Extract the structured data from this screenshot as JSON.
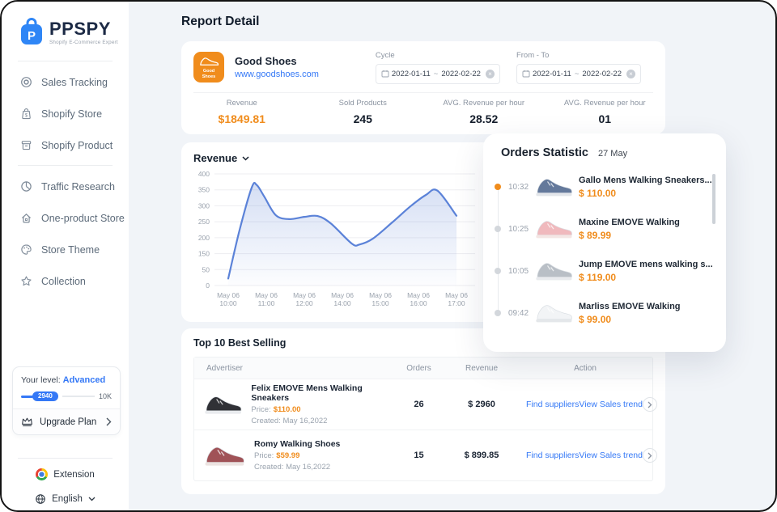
{
  "sidebar": {
    "brand": "PPSPY",
    "tagline": "Shopify E-Commerce Expert",
    "nav_primary": [
      {
        "label": "Sales Tracking"
      },
      {
        "label": "Shopify Store"
      },
      {
        "label": "Shopify Product"
      }
    ],
    "nav_secondary": [
      {
        "label": "Traffic Research"
      },
      {
        "label": "One-product Store"
      },
      {
        "label": "Store Theme"
      },
      {
        "label": "Collection"
      }
    ],
    "level": {
      "label": "Your level:",
      "value": "Advanced",
      "progress_current": "2940",
      "progress_max": "10K",
      "upgrade_label": "Upgrade Plan"
    },
    "extension_label": "Extension",
    "language_label": "English"
  },
  "page_title": "Report Detail",
  "shop_card": {
    "shop_name": "Good Shoes",
    "shop_url": "www.goodshoes.com",
    "badge_text": "Good Shoes",
    "cycle_label": "Cycle",
    "cycle_start": "2022-01-11",
    "cycle_sep": "~",
    "cycle_end": "2022-02-22",
    "cycle_clear": "×",
    "fromto_label": "From - To",
    "fromto_start": "2022-01-11",
    "fromto_sep": "~",
    "fromto_end": "2022-02-22",
    "fromto_clear": "×",
    "stats": [
      {
        "label": "Revenue",
        "value": "$1849.81"
      },
      {
        "label": "Sold Products",
        "value": "245"
      },
      {
        "label": "AVG. Revenue per hour",
        "value": "28.52"
      },
      {
        "label": "AVG. Revenue per hour",
        "value": "01"
      }
    ]
  },
  "chart_data": {
    "type": "area",
    "title": "Revenue",
    "series_name": "Revenue",
    "x_tick_labels": [
      "May 06|10:00",
      "May 06|11:00",
      "May 06|12:00",
      "May 06|14:00",
      "May 06|15:00",
      "May 06|16:00",
      "May 06|17:00"
    ],
    "y_tick_labels": [
      "400",
      "350",
      "300",
      "250",
      "200",
      "150",
      "50",
      "0"
    ],
    "ylim": [
      0,
      400
    ],
    "grid": true,
    "legend": "none",
    "points": [
      [
        0,
        25
      ],
      [
        0.3,
        200
      ],
      [
        0.62,
        352
      ],
      [
        0.75,
        360
      ],
      [
        0.95,
        318
      ],
      [
        1.25,
        252
      ],
      [
        1.6,
        238
      ],
      [
        2.0,
        246
      ],
      [
        2.35,
        249
      ],
      [
        2.7,
        222
      ],
      [
        3.25,
        150
      ],
      [
        3.45,
        147
      ],
      [
        3.8,
        168
      ],
      [
        4.3,
        225
      ],
      [
        4.8,
        285
      ],
      [
        5.2,
        325
      ],
      [
        5.5,
        340
      ],
      [
        6,
        250
      ]
    ],
    "line_color": "#5b82d8",
    "fill_top": "rgba(116,148,219,0.30)",
    "fill_bottom": "rgba(116,148,219,0.02)"
  },
  "orders_panel": {
    "title": "Orders Statistic",
    "date": "27 May",
    "items": [
      {
        "time": "10:32",
        "name": "Gallo Mens Walking Sneakers...",
        "price": "$ 110.00",
        "shoe_color": "#64799b",
        "sole_color": "#e3e6ea"
      },
      {
        "time": "10:25",
        "name": "Maxine EMOVE Walking",
        "price": "$ 89.99",
        "shoe_color": "#f0b9bd",
        "sole_color": "#f4e6e4"
      },
      {
        "time": "10:05",
        "name": "Jump EMOVE mens walking s...",
        "price": "$ 119.00",
        "shoe_color": "#b9bfc6",
        "sole_color": "#e9ebee"
      },
      {
        "time": "09:42",
        "name": "Marliss EMOVE Walking",
        "price": "$ 99.00",
        "shoe_color": "#f2f4f6",
        "sole_color": "#e4e7ea"
      }
    ]
  },
  "best_selling": {
    "title": "Top 10 Best Selling",
    "col_advertiser": "Advertiser",
    "col_orders": "Orders",
    "col_revenue": "Revenue",
    "col_action": "Action",
    "rows": [
      {
        "name": "Felix EMOVE Mens Walking Sneakers",
        "price_label": "Price:",
        "price": "$110.00",
        "created_label": "Created:",
        "created": "May 16,2022",
        "orders": "26",
        "revenue": "$ 2960",
        "find_label": "Find suppliers",
        "view_label": "View Sales trend",
        "shoe_color": "#303136",
        "sole_color": "#e9ebee"
      },
      {
        "name": "Romy Walking Shoes",
        "price_label": "Price:",
        "price": "$59.99",
        "created_label": "Created:",
        "created": "May 16,2022",
        "orders": "15",
        "revenue": "$ 899.85",
        "find_label": "Find suppliers",
        "view_label": "View Sales trend",
        "shoe_color": "#a05257",
        "sole_color": "#ece3e1"
      }
    ]
  }
}
